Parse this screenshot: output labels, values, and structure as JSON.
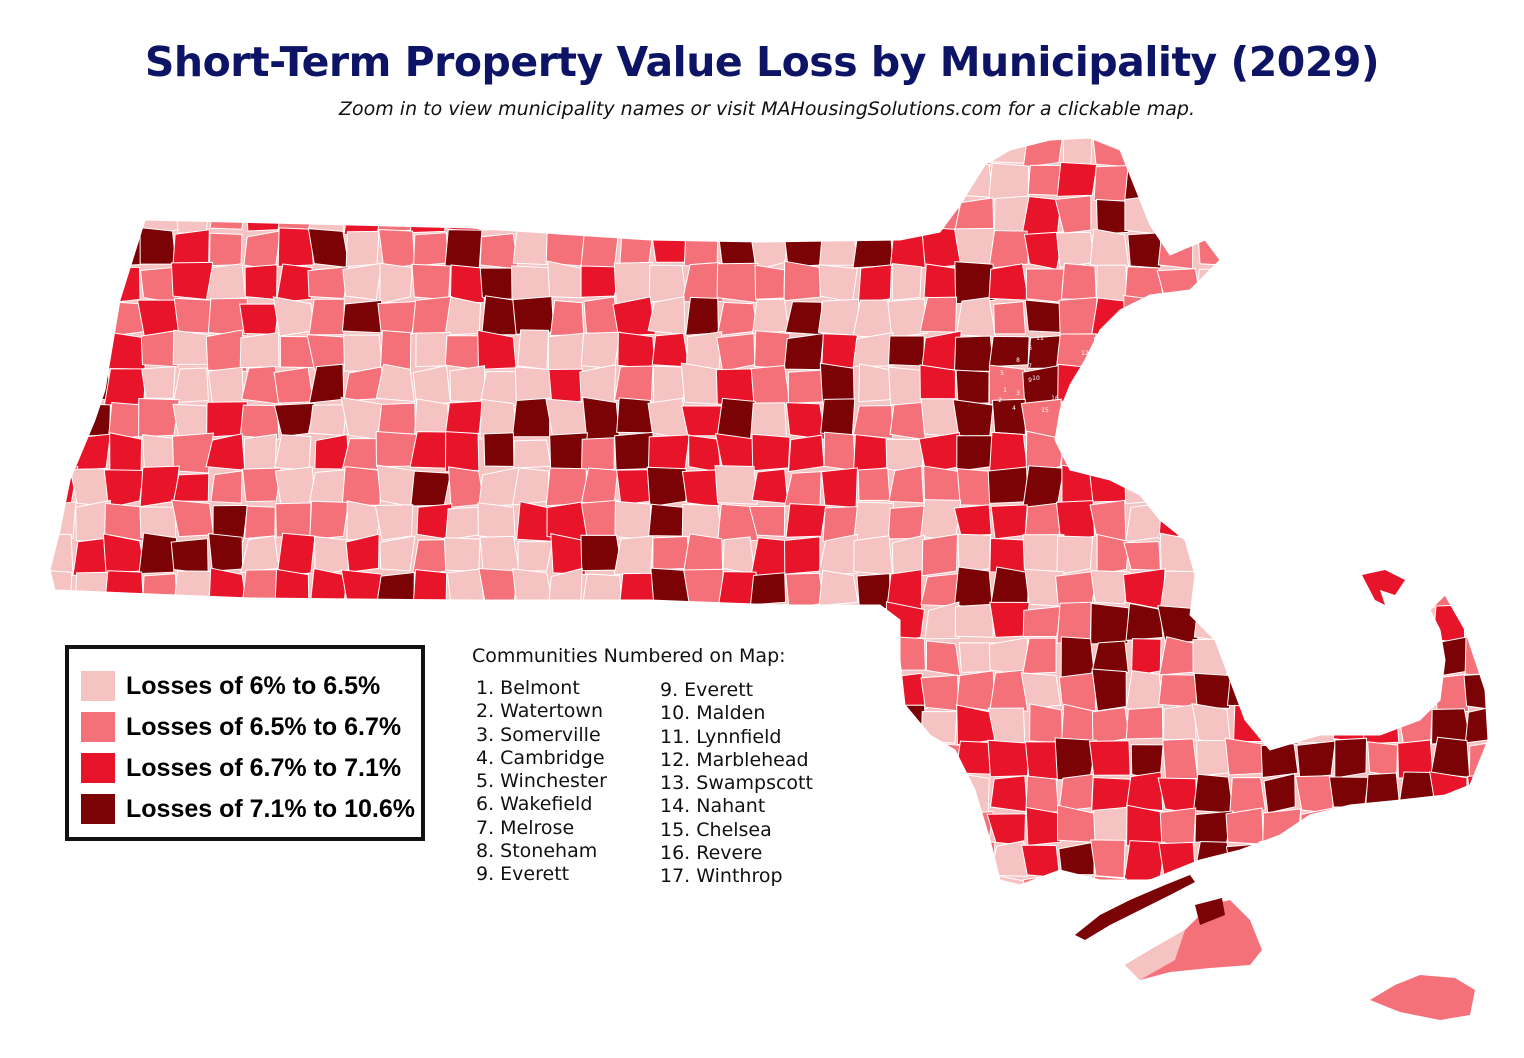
{
  "title": "Short-Term Property Value Loss by Municipality (2029)",
  "subtitle": "Zoom in to view municipality names or visit MAHousingSolutions.com for a clickable map.",
  "legend": {
    "items": [
      {
        "label": "Losses of 6% to 6.5%",
        "color": "#f6c3c3"
      },
      {
        "label": "Losses of 6.5% to 6.7%",
        "color": "#f5717a"
      },
      {
        "label": "Losses of 6.7% to 7.1%",
        "color": "#e8142a"
      },
      {
        "label": "Losses of 7.1% to 10.6%",
        "color": "#7b0306"
      }
    ]
  },
  "communities": {
    "heading": "Communities Numbered on Map:",
    "col1": [
      "1. Belmont",
      "2. Watertown",
      "3. Somerville",
      "4. Cambridge",
      "5. Winchester",
      "6. Wakefield",
      "7. Melrose",
      "8. Stoneham",
      "9. Everett"
    ],
    "col2": [
      "9. Everett",
      "10. Malden",
      "11. Lynnfield",
      "12. Marblehead",
      "13. Swampscott",
      "14. Nahant",
      "15. Chelsea",
      "16. Revere",
      "17. Winthrop"
    ]
  },
  "map_numbers": [
    "1",
    "2",
    "3",
    "4",
    "5",
    "6",
    "7",
    "8",
    "9",
    "10",
    "11",
    "12",
    "13",
    "14",
    "15",
    "16",
    "17"
  ]
}
